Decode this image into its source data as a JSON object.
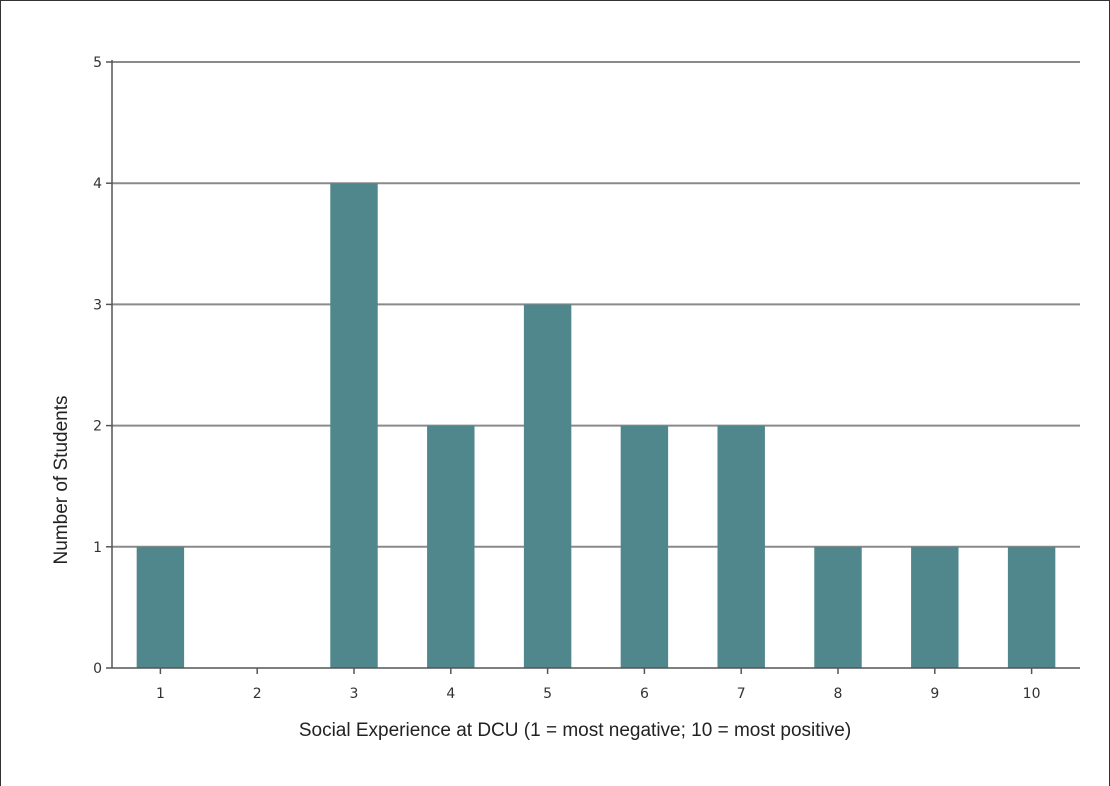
{
  "chart_data": {
    "type": "bar",
    "title": "",
    "xlabel": "Social Experience at DCU (1 = most negative; 10 = most positive)",
    "ylabel": "Number of Students",
    "categories": [
      "1",
      "2",
      "3",
      "4",
      "5",
      "6",
      "7",
      "8",
      "9",
      "10"
    ],
    "values": [
      1,
      0,
      4,
      2,
      3,
      2,
      2,
      1,
      1,
      1
    ],
    "ylim": [
      0,
      5
    ],
    "yticks": [
      "0",
      "1",
      "2",
      "3",
      "4",
      "5"
    ],
    "grid": true,
    "legend": "none",
    "colors": {
      "bar": "#4f878c",
      "grid": "#8a8a8a",
      "axis": "#555555"
    }
  }
}
